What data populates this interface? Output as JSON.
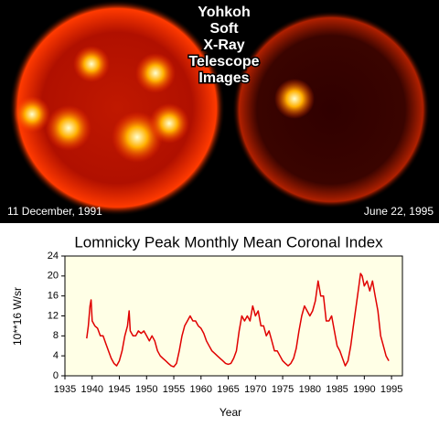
{
  "images": {
    "title_lines": [
      "Yohkoh",
      "Soft",
      "X-Ray",
      "Telescope",
      "Images"
    ],
    "left_caption": "11 December, 1991",
    "right_caption": "June 22, 1995"
  },
  "chart_data": {
    "type": "line",
    "title": "Lomnicky Peak Monthly Mean Coronal Index",
    "x_label": "Year",
    "y_label": "10**16 W/sr",
    "color": "#e00000",
    "x": [
      1939.0,
      1939.3,
      1939.6,
      1939.8,
      1940.0,
      1940.5,
      1941,
      1941.5,
      1942,
      1942.5,
      1943,
      1943.5,
      1944,
      1944.5,
      1945,
      1945.5,
      1946,
      1946.5,
      1946.8,
      1947,
      1947.5,
      1948,
      1948.5,
      1949,
      1949.5,
      1950,
      1950.5,
      1951,
      1951.5,
      1952,
      1952.5,
      1953,
      1953.5,
      1954,
      1954.5,
      1955,
      1955.5,
      1956,
      1956.5,
      1957,
      1957.5,
      1958,
      1958.5,
      1959,
      1959.5,
      1960,
      1960.5,
      1961,
      1961.5,
      1962,
      1962.5,
      1963,
      1963.5,
      1964,
      1964.5,
      1965,
      1965.5,
      1966,
      1966.5,
      1967,
      1967.5,
      1968,
      1968.5,
      1969,
      1969.5,
      1970,
      1970.5,
      1971,
      1971.5,
      1972,
      1972.5,
      1973,
      1973.5,
      1974,
      1974.5,
      1975,
      1975.5,
      1976,
      1976.5,
      1977,
      1977.5,
      1978,
      1978.5,
      1979,
      1979.5,
      1980,
      1980.5,
      1981,
      1981.5,
      1982,
      1982.5,
      1983,
      1983.5,
      1984,
      1984.5,
      1985,
      1985.5,
      1986,
      1986.5,
      1987,
      1987.5,
      1988,
      1988.5,
      1989,
      1989.3,
      1989.6,
      1990,
      1990.5,
      1991,
      1991.5,
      1992,
      1992.5,
      1993,
      1993.5,
      1994,
      1994.5
    ],
    "values": [
      7.5,
      10,
      14,
      15.2,
      11,
      10,
      9.5,
      8,
      8,
      6.5,
      5,
      3.5,
      2.5,
      2,
      3,
      5,
      8,
      10,
      13,
      9,
      8,
      8,
      9,
      8.5,
      9,
      8,
      7,
      8,
      7,
      5,
      4,
      3.5,
      3,
      2.5,
      2,
      1.8,
      2.5,
      5,
      8,
      10,
      11,
      12,
      11,
      11,
      10,
      9.5,
      8.5,
      7,
      6,
      5,
      4.5,
      4,
      3.5,
      3,
      2.5,
      2.3,
      2.5,
      3.5,
      5,
      9,
      12,
      11,
      12,
      11,
      14,
      12,
      13,
      10,
      10,
      8,
      9,
      7,
      5,
      5,
      4,
      3,
      2.5,
      2,
      2.5,
      3.5,
      5.5,
      9,
      12,
      14,
      13,
      12,
      13,
      15,
      19,
      16,
      16,
      11,
      11,
      12,
      9,
      6,
      5,
      3.5,
      2,
      3,
      6,
      10,
      14,
      18,
      20.5,
      20,
      18,
      19,
      17,
      19,
      16,
      13,
      8,
      6,
      4,
      3
    ],
    "xlim": [
      1935,
      1997
    ],
    "xticks": [
      1935,
      1940,
      1945,
      1950,
      1955,
      1960,
      1965,
      1970,
      1975,
      1980,
      1985,
      1990,
      1995
    ],
    "ylim": [
      0,
      24
    ],
    "yticks": [
      0,
      4,
      8,
      12,
      16,
      20,
      24
    ]
  }
}
